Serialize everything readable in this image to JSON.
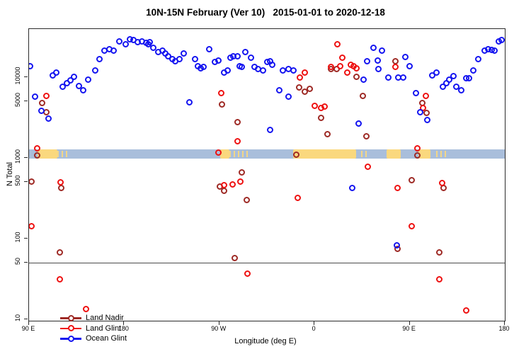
{
  "title": "10N-15N February (Ver 10)   2015-01-01 to 2020-12-18",
  "legend": {
    "items": [
      "Land Nadir",
      "Land Glint",
      "Ocean Glint"
    ]
  },
  "axes": {
    "x_label": "Longitude (deg E)",
    "y_label": "N Total"
  },
  "chart_data": {
    "type": "scatter",
    "title": "10N-15N February (Ver 10)   2015-01-01 to 2020-12-18",
    "xlabel": "Longitude (deg E)",
    "ylabel": "N Total",
    "x_axis": {
      "min": 90,
      "max": 540,
      "note": "longitude axis wraps eastward: 90E to 180 to 90W to 0 to 90E to 180",
      "ticks": [
        {
          "label": "90 E",
          "deg": 90
        },
        {
          "label": "180",
          "deg": 180
        },
        {
          "label": "90 W",
          "deg": 270
        },
        {
          "label": "0",
          "deg": 360
        },
        {
          "label": "90 E",
          "deg": 450
        },
        {
          "label": "180",
          "deg": 540
        }
      ]
    },
    "y_axis": {
      "scale": "log",
      "min": 10,
      "max": 39500,
      "ticks": [
        {
          "label": "10",
          "value": 10
        },
        {
          "label": "50",
          "value": 50
        },
        {
          "label": "100",
          "value": 100
        },
        {
          "label": "500",
          "value": 500
        },
        {
          "label": "1000",
          "value": 1000
        },
        {
          "label": "5000",
          "value": 5000
        },
        {
          "label": "10000",
          "value": 10000
        }
      ]
    },
    "reference_line_y": 50,
    "map_band": {
      "y_top_value": 1273,
      "y_bottom_value": 980,
      "ocean_color": "#A9BEDB",
      "land_color": "#FAD87E",
      "land_segments_deg": [
        [
          98,
          116.8
        ],
        [
          270.8,
          279.5
        ],
        [
          339.8,
          399.4
        ],
        [
          428.1,
          441.5
        ],
        [
          458.3,
          469.7
        ]
      ],
      "speckle_segments_deg": [
        [
          116.8,
          126.9
        ],
        [
          279.5,
          297.7
        ],
        [
          404,
          412.4
        ],
        [
          475.1,
          486.5
        ]
      ]
    },
    "series": [
      {
        "name": "Land Nadir",
        "color": "#9E2A25",
        "points": [
          [
            102.7,
            4780
          ],
          [
            106.1,
            3680
          ],
          [
            98,
            1070
          ],
          [
            92,
            513
          ],
          [
            120.8,
            428
          ],
          [
            118.8,
            68
          ],
          [
            272.8,
            4590
          ],
          [
            286.9,
            2780
          ],
          [
            290.9,
            666
          ],
          [
            270.8,
            437
          ],
          [
            274.8,
            388
          ],
          [
            296.2,
            303
          ],
          [
            284.8,
            57
          ],
          [
            343.1,
            1090
          ],
          [
            345.8,
            7490
          ],
          [
            351.1,
            6630
          ],
          [
            355.8,
            7200
          ],
          [
            366.5,
            3140
          ],
          [
            372.5,
            1950
          ],
          [
            375.6,
            12700
          ],
          [
            381.2,
            12500
          ],
          [
            400,
            10200
          ],
          [
            406,
            5850
          ],
          [
            409.4,
            1840
          ],
          [
            436.8,
            15600
          ],
          [
            452.2,
            524
          ],
          [
            457.6,
            1070
          ],
          [
            462.3,
            4780
          ],
          [
            466.3,
            3610
          ],
          [
            482.3,
            428
          ],
          [
            438.8,
            75
          ],
          [
            478.3,
            67
          ]
        ]
      },
      {
        "name": "Land Glint",
        "color": "#EE1111",
        "points": [
          [
            106.7,
            5850
          ],
          [
            98,
            1310
          ],
          [
            92,
            143
          ],
          [
            120.1,
            503
          ],
          [
            118.8,
            31
          ],
          [
            143.6,
            13.3
          ],
          [
            268.8,
            1160
          ],
          [
            272.1,
            6370
          ],
          [
            274.8,
            464
          ],
          [
            282.8,
            473
          ],
          [
            286.9,
            1600
          ],
          [
            290.2,
            513
          ],
          [
            296.9,
            36.5
          ],
          [
            343.8,
            322
          ],
          [
            346.4,
            10000
          ],
          [
            350.5,
            11500
          ],
          [
            360.5,
            4410
          ],
          [
            365.9,
            4150
          ],
          [
            369.9,
            4320
          ],
          [
            375.9,
            13300
          ],
          [
            381.9,
            25800
          ],
          [
            384.6,
            13800
          ],
          [
            386.6,
            17600
          ],
          [
            391.3,
            11500
          ],
          [
            394.6,
            14100
          ],
          [
            397.3,
            13800
          ],
          [
            400,
            13000
          ],
          [
            410.7,
            770
          ],
          [
            436.8,
            13300
          ],
          [
            438.8,
            428
          ],
          [
            452.2,
            141
          ],
          [
            457.6,
            1310
          ],
          [
            462.9,
            4150
          ],
          [
            465.6,
            5850
          ],
          [
            478.3,
            31
          ],
          [
            481,
            493
          ],
          [
            503.8,
            13
          ]
        ]
      },
      {
        "name": "Ocean Glint",
        "color": "#1414F0",
        "points": [
          [
            90.7,
            13800
          ],
          [
            96,
            5740
          ],
          [
            101.4,
            3830
          ],
          [
            108.1,
            3080
          ],
          [
            112.1,
            10600
          ],
          [
            116.1,
            11300
          ],
          [
            122.1,
            7640
          ],
          [
            125.5,
            8460
          ],
          [
            129.5,
            9180
          ],
          [
            132.2,
            10200
          ],
          [
            137.5,
            7800
          ],
          [
            140.9,
            6900
          ],
          [
            146.2,
            9370
          ],
          [
            152.3,
            12200
          ],
          [
            156.3,
            16600
          ],
          [
            161,
            21500
          ],
          [
            165.7,
            22400
          ],
          [
            169.7,
            21500
          ],
          [
            175.7,
            27900
          ],
          [
            181.1,
            25800
          ],
          [
            185.1,
            29300
          ],
          [
            189.1,
            28600
          ],
          [
            193.1,
            27200
          ],
          [
            196.5,
            27900
          ],
          [
            200.5,
            26500
          ],
          [
            202.5,
            25800
          ],
          [
            204.5,
            27200
          ],
          [
            207.2,
            23300
          ],
          [
            211.9,
            20300
          ],
          [
            215.9,
            21500
          ],
          [
            219.2,
            19500
          ],
          [
            221.9,
            18300
          ],
          [
            225.3,
            16900
          ],
          [
            228.6,
            15900
          ],
          [
            232,
            16600
          ],
          [
            236,
            19500
          ],
          [
            242,
            4880
          ],
          [
            246.7,
            16600
          ],
          [
            249.4,
            13800
          ],
          [
            252.7,
            13000
          ],
          [
            255.4,
            13500
          ],
          [
            260.7,
            22400
          ],
          [
            266.1,
            15300
          ],
          [
            268.8,
            16200
          ],
          [
            274.8,
            11300
          ],
          [
            277.5,
            12200
          ],
          [
            280.8,
            17600
          ],
          [
            283.5,
            18300
          ],
          [
            286.9,
            18300
          ],
          [
            289.5,
            13800
          ],
          [
            291.5,
            13300
          ],
          [
            294.9,
            20300
          ],
          [
            299.6,
            17600
          ],
          [
            303.6,
            13300
          ],
          [
            306.9,
            12700
          ],
          [
            311.6,
            12200
          ],
          [
            315,
            15300
          ],
          [
            317.7,
            2230
          ],
          [
            318.3,
            15600
          ],
          [
            319.7,
            14100
          ],
          [
            326.4,
            6950
          ],
          [
            330.4,
            12200
          ],
          [
            335.1,
            12500
          ],
          [
            335.7,
            5740
          ],
          [
            339.8,
            12200
          ],
          [
            396,
            428
          ],
          [
            402,
            2670
          ],
          [
            406.7,
            9370
          ],
          [
            410,
            15900
          ],
          [
            416.1,
            23300
          ],
          [
            420.1,
            16200
          ],
          [
            420.7,
            12500
          ],
          [
            424.1,
            21500
          ],
          [
            430.1,
            10000
          ],
          [
            438.1,
            82
          ],
          [
            439.5,
            10000
          ],
          [
            444.2,
            10000
          ],
          [
            446.2,
            17900
          ],
          [
            450.2,
            13800
          ],
          [
            456.2,
            6370
          ],
          [
            460.2,
            3680
          ],
          [
            466.9,
            2960
          ],
          [
            471.6,
            10600
          ],
          [
            475.6,
            11300
          ],
          [
            481.6,
            7640
          ],
          [
            485,
            8460
          ],
          [
            487.7,
            9370
          ],
          [
            491.7,
            10400
          ],
          [
            494.4,
            7640
          ],
          [
            499.1,
            6900
          ],
          [
            503.8,
            9800
          ],
          [
            506.4,
            9800
          ],
          [
            510.5,
            12200
          ],
          [
            515.1,
            16900
          ],
          [
            521.2,
            21500
          ],
          [
            524.5,
            22400
          ],
          [
            527.9,
            21900
          ],
          [
            530.5,
            21500
          ],
          [
            534.6,
            27500
          ],
          [
            537.2,
            28600
          ]
        ]
      }
    ]
  }
}
